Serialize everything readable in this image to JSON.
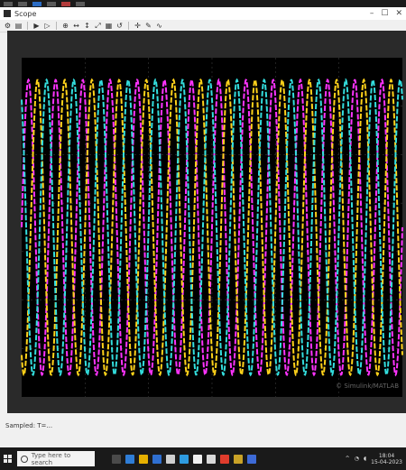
{
  "window": {
    "title": "Scope",
    "controls": [
      "–",
      "☐",
      "✕"
    ]
  },
  "toolbar": {
    "icons": [
      "settings-icon",
      "print-icon",
      "run-icon",
      "step-icon",
      "zoom-in-icon",
      "zoom-x-icon",
      "zoom-y-icon",
      "autoscale-icon",
      "save-axes-icon",
      "restore-icon",
      "cursor-icon",
      "style-icon",
      "signal-icon"
    ]
  },
  "status": {
    "text": "Sampled: T=..."
  },
  "taskbar": {
    "search_placeholder": "Type here to search",
    "time": "18:04",
    "date": "15-04-2023"
  },
  "chart_data": {
    "type": "line",
    "grid": true,
    "background": "#000000",
    "series": [
      {
        "color": "#ff33ff",
        "amplitude": 1.0,
        "phase_deg": 0
      },
      {
        "color": "#ffd21a",
        "amplitude": 1.0,
        "phase_deg": -120
      },
      {
        "color": "#33dede",
        "amplitude": 1.0,
        "phase_deg": 120
      }
    ],
    "cycles": 14,
    "ylim": [
      -1.15,
      1.15
    ],
    "watermark": "© Simulink/MATLAB"
  }
}
